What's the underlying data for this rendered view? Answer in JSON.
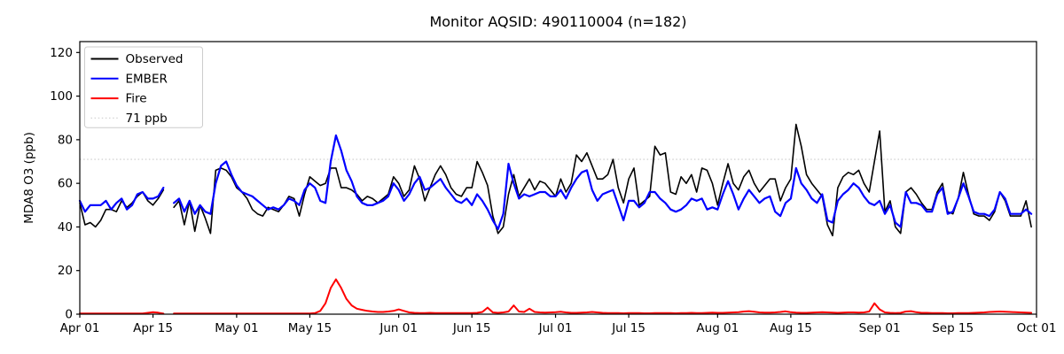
{
  "chart_data": {
    "type": "line",
    "title": "Monitor AQSID: 490110004 (n=182)",
    "xlabel": "",
    "ylabel": "MDA8 O3 (ppb)",
    "ylim": [
      0,
      125
    ],
    "yticks": [
      0,
      20,
      40,
      60,
      80,
      100,
      120
    ],
    "x_days_total": 183,
    "x_points_start": "Apr 01",
    "x_points_interval_days": 1,
    "grid": false,
    "legend_position": "upper left",
    "xticks": [
      {
        "day": 0,
        "label": "Apr 01"
      },
      {
        "day": 14,
        "label": "Apr 15"
      },
      {
        "day": 30,
        "label": "May 01"
      },
      {
        "day": 44,
        "label": "May 15"
      },
      {
        "day": 61,
        "label": "Jun 01"
      },
      {
        "day": 75,
        "label": "Jun 15"
      },
      {
        "day": 91,
        "label": "Jul 01"
      },
      {
        "day": 105,
        "label": "Jul 15"
      },
      {
        "day": 122,
        "label": "Aug 01"
      },
      {
        "day": 136,
        "label": "Aug 15"
      },
      {
        "day": 153,
        "label": "Sep 01"
      },
      {
        "day": 167,
        "label": "Sep 15"
      },
      {
        "day": 183,
        "label": "Oct 01"
      }
    ],
    "threshold": {
      "value": 71,
      "label": "71 ppb",
      "color": "#d3d3d3",
      "style": "dotted"
    },
    "legend": [
      {
        "name": "Observed",
        "color": "#000000",
        "style": "solid"
      },
      {
        "name": "EMBER",
        "color": "#0000ff",
        "style": "solid"
      },
      {
        "name": "Fire",
        "color": "#ff0000",
        "style": "solid"
      },
      {
        "name": "71 ppb",
        "color": "#d3d3d3",
        "style": "dotted"
      }
    ],
    "series": [
      {
        "name": "Observed",
        "color": "#000000",
        "width": 1.6,
        "values": [
          51,
          41,
          42,
          40,
          43,
          48,
          48,
          47,
          52,
          49,
          51,
          54,
          56,
          52,
          50,
          53,
          57,
          null,
          49,
          52,
          41,
          52,
          38,
          50,
          44,
          37,
          66,
          67,
          66,
          63,
          58,
          56,
          53,
          48,
          46,
          45,
          49,
          48,
          47,
          50,
          54,
          53,
          45,
          55,
          63,
          61,
          59,
          60,
          67,
          67,
          58,
          58,
          57,
          55,
          52,
          54,
          53,
          51,
          53,
          55,
          63,
          60,
          54,
          57,
          68,
          62,
          52,
          58,
          64,
          68,
          64,
          58,
          55,
          54,
          58,
          58,
          70,
          65,
          59,
          45,
          37,
          40,
          55,
          64,
          54,
          58,
          62,
          57,
          61,
          60,
          57,
          54,
          62,
          56,
          60,
          73,
          70,
          74,
          68,
          62,
          62,
          64,
          71,
          58,
          51,
          62,
          67,
          50,
          52,
          54,
          77,
          73,
          74,
          56,
          55,
          63,
          60,
          64,
          56,
          67,
          66,
          60,
          50,
          60,
          69,
          60,
          57,
          63,
          66,
          60,
          56,
          59,
          62,
          62,
          52,
          58,
          62,
          87,
          77,
          64,
          60,
          57,
          54,
          41,
          36,
          58,
          63,
          65,
          64,
          66,
          60,
          56,
          70,
          84,
          47,
          52,
          40,
          37,
          56,
          58,
          55,
          51,
          48,
          48,
          56,
          60,
          47,
          46,
          53,
          65,
          55,
          46,
          45,
          45,
          43,
          47,
          56,
          52,
          45,
          45,
          45,
          52,
          40
        ]
      },
      {
        "name": "EMBER",
        "color": "#0000ff",
        "width": 2.2,
        "values": [
          52,
          47,
          50,
          50,
          50,
          52,
          48,
          51,
          53,
          48,
          50,
          55,
          56,
          53,
          53,
          54,
          58,
          null,
          51,
          53,
          47,
          52,
          46,
          50,
          47,
          46,
          60,
          68,
          70,
          64,
          59,
          56,
          55,
          54,
          52,
          50,
          48,
          49,
          48,
          50,
          53,
          52,
          50,
          57,
          60,
          58,
          52,
          51,
          70,
          82,
          75,
          66,
          61,
          54,
          51,
          50,
          50,
          51,
          52,
          54,
          60,
          57,
          52,
          55,
          60,
          63,
          57,
          58,
          60,
          62,
          58,
          55,
          52,
          51,
          53,
          50,
          55,
          52,
          48,
          43,
          39,
          46,
          69,
          60,
          53,
          55,
          54,
          55,
          56,
          56,
          54,
          54,
          57,
          53,
          58,
          62,
          65,
          66,
          57,
          52,
          55,
          56,
          57,
          50,
          43,
          52,
          52,
          49,
          51,
          56,
          56,
          53,
          51,
          48,
          47,
          48,
          50,
          53,
          52,
          53,
          48,
          49,
          48,
          55,
          61,
          55,
          48,
          53,
          57,
          54,
          51,
          53,
          54,
          47,
          45,
          51,
          53,
          67,
          60,
          57,
          53,
          51,
          55,
          43,
          42,
          52,
          55,
          57,
          60,
          58,
          54,
          51,
          50,
          52,
          46,
          50,
          42,
          40,
          56,
          51,
          51,
          50,
          47,
          47,
          55,
          58,
          46,
          47,
          53,
          60,
          54,
          47,
          46,
          46,
          45,
          48,
          56,
          53,
          46,
          46,
          46,
          48,
          46
        ]
      },
      {
        "name": "Fire",
        "color": "#ff0000",
        "width": 2.0,
        "values": [
          0.3,
          0.3,
          0.3,
          0.3,
          0.3,
          0.3,
          0.3,
          0.3,
          0.3,
          0.3,
          0.3,
          0.3,
          0.3,
          0.6,
          0.9,
          0.7,
          0.3,
          null,
          0.3,
          0.3,
          0.3,
          0.3,
          0.3,
          0.3,
          0.3,
          0.3,
          0.3,
          0.3,
          0.3,
          0.3,
          0.3,
          0.3,
          0.3,
          0.3,
          0.3,
          0.3,
          0.3,
          0.3,
          0.3,
          0.3,
          0.3,
          0.3,
          0.3,
          0.3,
          0.3,
          0.5,
          1.5,
          5,
          12,
          16,
          12,
          7,
          4,
          2.5,
          2,
          1.5,
          1.2,
          1,
          1,
          1.2,
          1.5,
          2.2,
          1.5,
          0.8,
          0.6,
          0.5,
          0.5,
          0.6,
          0.5,
          0.5,
          0.5,
          0.5,
          0.5,
          0.5,
          0.5,
          0.5,
          0.6,
          1,
          3,
          0.8,
          0.6,
          0.8,
          1.2,
          4,
          1.2,
          1,
          2.5,
          1,
          0.8,
          0.7,
          0.8,
          0.9,
          1.1,
          0.8,
          0.6,
          0.6,
          0.7,
          0.8,
          1,
          0.8,
          0.6,
          0.5,
          0.5,
          0.5,
          0.4,
          0.5,
          0.5,
          0.5,
          0.4,
          0.4,
          0.5,
          0.5,
          0.5,
          0.5,
          0.4,
          0.5,
          0.5,
          0.6,
          0.5,
          0.5,
          0.6,
          0.7,
          0.6,
          0.6,
          0.7,
          0.8,
          0.9,
          1.2,
          1.4,
          1.1,
          0.8,
          0.7,
          0.7,
          0.8,
          1,
          1.3,
          0.9,
          0.7,
          0.6,
          0.6,
          0.7,
          0.8,
          0.9,
          0.8,
          0.7,
          0.6,
          0.7,
          0.8,
          0.8,
          0.7,
          0.8,
          1.2,
          5,
          2.2,
          0.8,
          0.6,
          0.5,
          0.6,
          1.2,
          1.4,
          0.9,
          0.6,
          0.6,
          0.5,
          0.5,
          0.5,
          0.4,
          0.4,
          0.5,
          0.5,
          0.5,
          0.6,
          0.7,
          0.8,
          1,
          1.1,
          1.2,
          1.1,
          1,
          0.9,
          0.8,
          0.7,
          0.6
        ]
      }
    ]
  }
}
